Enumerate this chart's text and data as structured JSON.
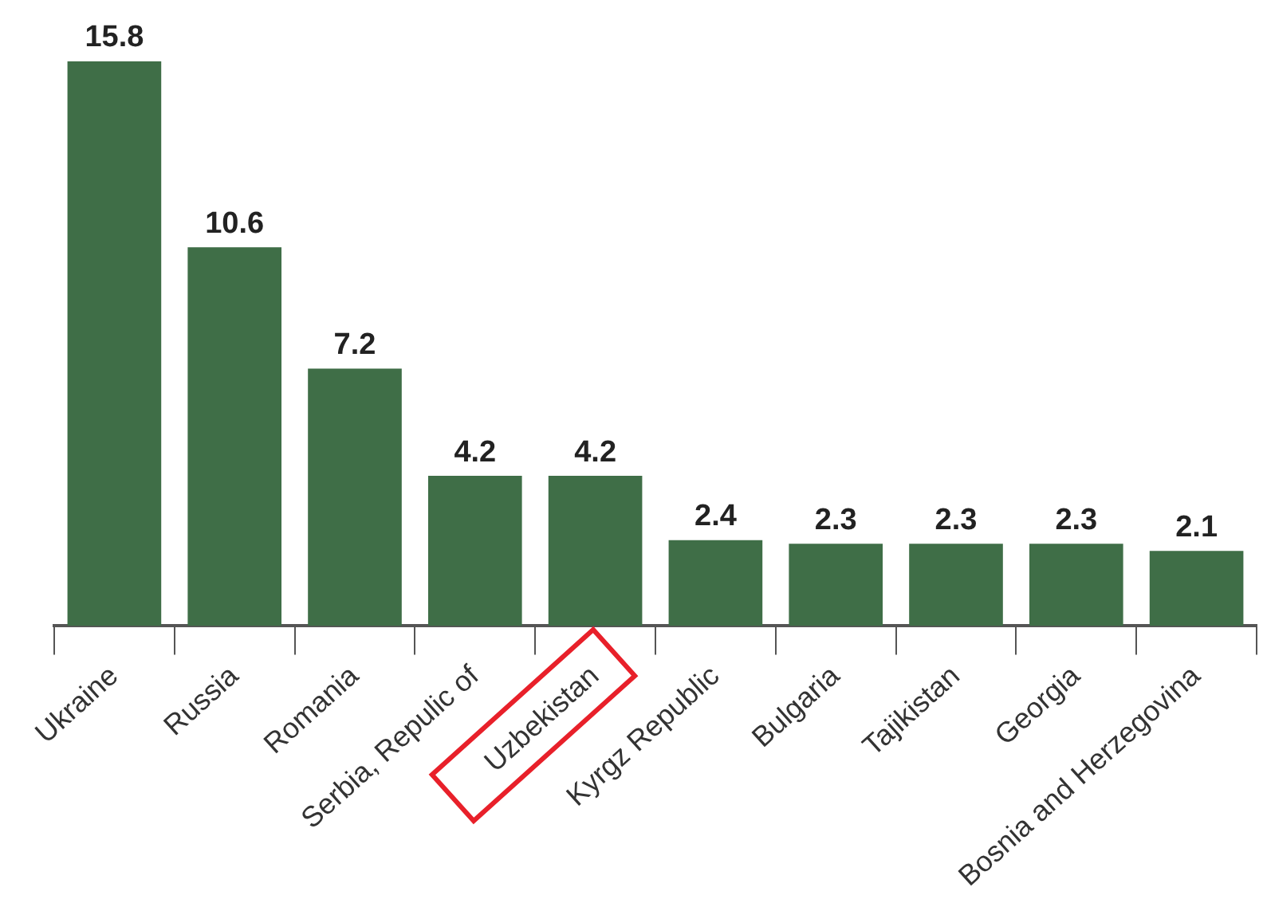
{
  "chart_data": {
    "type": "bar",
    "categories": [
      "Ukraine",
      "Russia",
      "Romania",
      "Serbia, Repulic of",
      "Uzbekistan",
      "Kyrgz Republic",
      "Bulgaria",
      "Tajikistan",
      "Georgia",
      "Bosnia and Herzegovina"
    ],
    "values": [
      15.8,
      10.6,
      7.2,
      4.2,
      4.2,
      2.4,
      2.3,
      2.3,
      2.3,
      2.1
    ],
    "color": "#3f6e47",
    "data_labels": true,
    "tick_labels": "x",
    "grid": false,
    "legend": false
  }
}
